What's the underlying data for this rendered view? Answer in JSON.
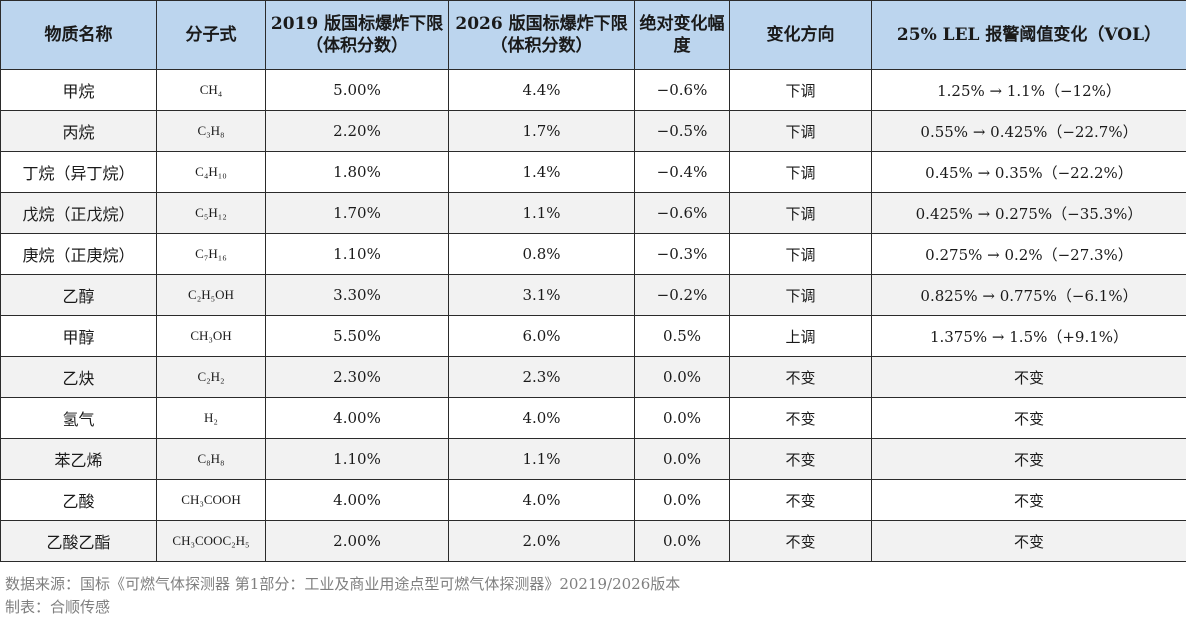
{
  "table": {
    "headers": [
      "物质名称",
      "分子式",
      "2019 版国标爆炸下限（体积分数）",
      "2026 版国标爆炸下限（体积分数）",
      "绝对变化幅度",
      "变化方向",
      "25% LEL 报警阈值变化（VOL）"
    ],
    "rows": [
      {
        "name": "甲烷",
        "formula": "CH₄",
        "lel2019": "5.00%",
        "lel2026": "4.4%",
        "delta": "−0.6%",
        "direction": "下调",
        "alarm": "1.25% → 1.1%（−12%）"
      },
      {
        "name": "丙烷",
        "formula": "C₃H₈",
        "lel2019": "2.20%",
        "lel2026": "1.7%",
        "delta": "−0.5%",
        "direction": "下调",
        "alarm": "0.55% → 0.425%（−22.7%）"
      },
      {
        "name": "丁烷（异丁烷）",
        "formula": "C₄H₁₀",
        "lel2019": "1.80%",
        "lel2026": "1.4%",
        "delta": "−0.4%",
        "direction": "下调",
        "alarm": "0.45% → 0.35%（−22.2%）"
      },
      {
        "name": "戊烷（正戊烷）",
        "formula": "C₅H₁₂",
        "lel2019": "1.70%",
        "lel2026": "1.1%",
        "delta": "−0.6%",
        "direction": "下调",
        "alarm": "0.425% → 0.275%（−35.3%）"
      },
      {
        "name": "庚烷（正庚烷）",
        "formula": "C₇H₁₆",
        "lel2019": "1.10%",
        "lel2026": "0.8%",
        "delta": "−0.3%",
        "direction": "下调",
        "alarm": "0.275% → 0.2%（−27.3%）"
      },
      {
        "name": "乙醇",
        "formula": "C₂H₅OH",
        "lel2019": "3.30%",
        "lel2026": "3.1%",
        "delta": "−0.2%",
        "direction": "下调",
        "alarm": "0.825% → 0.775%（−6.1%）"
      },
      {
        "name": "甲醇",
        "formula": "CH₃OH",
        "lel2019": "5.50%",
        "lel2026": "6.0%",
        "delta": "0.5%",
        "direction": "上调",
        "alarm": "1.375% → 1.5%（+9.1%）"
      },
      {
        "name": "乙炔",
        "formula": "C₂H₂",
        "lel2019": "2.30%",
        "lel2026": "2.3%",
        "delta": "0.0%",
        "direction": "不变",
        "alarm": "不变"
      },
      {
        "name": "氢气",
        "formula": "H₂",
        "lel2019": "4.00%",
        "lel2026": "4.0%",
        "delta": "0.0%",
        "direction": "不变",
        "alarm": "不变"
      },
      {
        "name": "苯乙烯",
        "formula": "C₈H₈",
        "lel2019": "1.10%",
        "lel2026": "1.1%",
        "delta": "0.0%",
        "direction": "不变",
        "alarm": "不变"
      },
      {
        "name": "乙酸",
        "formula": "CH₃COOH",
        "lel2019": "4.00%",
        "lel2026": "4.0%",
        "delta": "0.0%",
        "direction": "不变",
        "alarm": "不变"
      },
      {
        "name": "乙酸乙酯",
        "formula": "CH₃COOC₂H₅",
        "lel2019": "2.00%",
        "lel2026": "2.0%",
        "delta": "0.0%",
        "direction": "不变",
        "alarm": "不变"
      }
    ]
  },
  "footer": {
    "source": "数据来源：国标《可燃气体探测器 第1部分：工业及商业用途点型可燃气体探测器》20219/2026版本",
    "credit": "制表：合顺传感"
  },
  "colors": {
    "header_bg": "#bcd5ee",
    "stripe_bg": "#f2f2f2",
    "border": "#2b2b2b",
    "footer_text": "#7f7f7f"
  }
}
